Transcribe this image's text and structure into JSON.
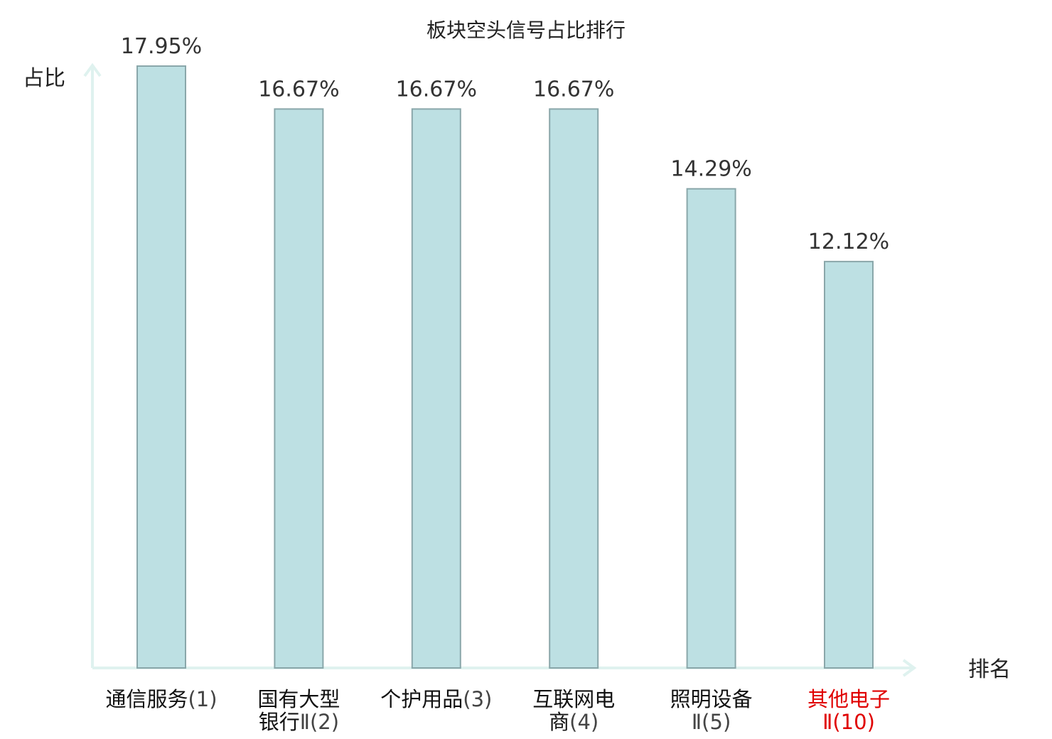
{
  "chart_data": {
    "type": "bar",
    "title": "板块空头信号占比排行",
    "ylabel": "占比",
    "xlabel": "排名",
    "ylim": [
      0,
      17.95
    ],
    "categories": [
      "通信服务(1)",
      "国有大型银行Ⅱ(2)",
      "个护用品(3)",
      "互联网电商(4)",
      "照明设备Ⅱ(5)",
      "其他电子Ⅱ(10)"
    ],
    "category_lines": [
      [
        {
          "name": "通信服务",
          "rank": "(1)"
        }
      ],
      [
        {
          "name": "国有大型",
          "rank": ""
        },
        {
          "name": "银行",
          "rank": "Ⅱ(2)"
        }
      ],
      [
        {
          "name": "个护用品",
          "rank": "(3)"
        }
      ],
      [
        {
          "name": "互联网电",
          "rank": ""
        },
        {
          "name": "商",
          "rank": "(4)"
        }
      ],
      [
        {
          "name": "照明设备",
          "rank": ""
        },
        {
          "name": "",
          "rank": "Ⅱ(5)"
        }
      ],
      [
        {
          "name": "其他电子",
          "rank": ""
        },
        {
          "name": "",
          "rank": "Ⅱ(10)"
        }
      ]
    ],
    "values": [
      17.95,
      16.67,
      16.67,
      16.67,
      14.29,
      12.12
    ],
    "value_labels": [
      "17.95%",
      "16.67%",
      "16.67%",
      "16.67%",
      "14.29%",
      "12.12%"
    ],
    "highlight_index": 5,
    "grid": false,
    "colors": {
      "bar_fill": "#bde0e3",
      "bar_stroke": "#8aa7aa",
      "axis": "#dff2ef",
      "highlight_text": "#e00000"
    }
  }
}
